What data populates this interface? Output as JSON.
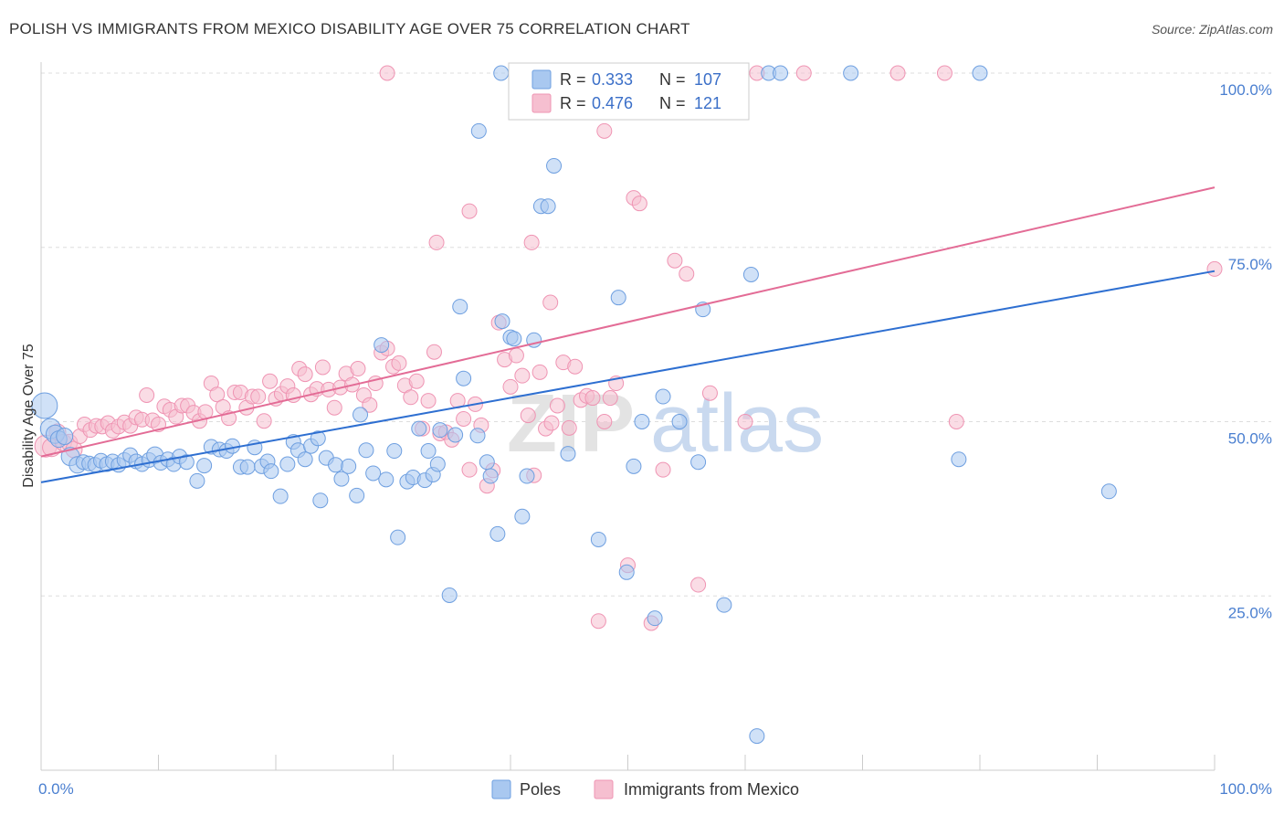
{
  "title": "POLISH VS IMMIGRANTS FROM MEXICO DISABILITY AGE OVER 75 CORRELATION CHART",
  "source": "Source: ZipAtlas.com",
  "watermark": {
    "part1": "ZIP",
    "part2": "atlas"
  },
  "legend": {
    "rows": [
      {
        "r_label": "R =",
        "r_value": "0.333",
        "n_label": "N =",
        "n_value": "107"
      },
      {
        "r_label": "R =",
        "r_value": "0.476",
        "n_label": "N =",
        "n_value": "121"
      }
    ]
  },
  "bottom_legend": {
    "series1": "Poles",
    "series2": "Immigrants from Mexico"
  },
  "colors": {
    "poles_fill": "#a9c8f0",
    "poles_stroke": "#6e9fe0",
    "poles_line": "#2e6fd1",
    "mex_fill": "#f6bfd0",
    "mex_stroke": "#ef94b3",
    "mex_line": "#e36c96",
    "tick_label": "#4a7fd0",
    "grid": "#dddddd"
  },
  "chart_data": {
    "type": "scatter",
    "title": "POLISH VS IMMIGRANTS FROM MEXICO DISABILITY AGE OVER 75 CORRELATION CHART",
    "ylabel": "Disability Age Over 75",
    "xlabel": "",
    "xlim": [
      0,
      100
    ],
    "ylim": [
      0,
      100
    ],
    "x_tick_labels": [
      "0.0%",
      "100.0%"
    ],
    "y_ticks": [
      25,
      50,
      75,
      100
    ],
    "y_tick_labels": [
      "25.0%",
      "50.0%",
      "75.0%",
      "100.0%"
    ],
    "grid": "horizontal dashed",
    "legend_position": "top-center",
    "series": [
      {
        "name": "Poles",
        "R": 0.333,
        "N": 107,
        "trend": {
          "x": [
            0,
            100
          ],
          "y": [
            41.3,
            71.6
          ]
        },
        "points": [
          [
            0.3,
            52.3,
            14
          ],
          [
            0.8,
            49.0,
            11
          ],
          [
            1.2,
            48.2,
            10
          ],
          [
            1.5,
            47.5,
            9
          ],
          [
            2.0,
            47.9,
            9
          ],
          [
            2.5,
            45.0,
            10
          ],
          [
            3.1,
            43.8,
            9
          ],
          [
            3.6,
            44.2,
            8
          ],
          [
            4.1,
            44.0,
            8
          ],
          [
            4.6,
            43.8,
            8
          ],
          [
            5.1,
            44.4,
            8
          ],
          [
            5.6,
            43.9,
            8
          ],
          [
            6.1,
            44.3,
            8
          ],
          [
            6.6,
            43.8,
            8
          ],
          [
            7.1,
            44.5,
            8
          ],
          [
            7.6,
            45.2,
            8
          ],
          [
            8.1,
            44.3,
            8
          ],
          [
            8.6,
            43.9,
            8
          ],
          [
            9.2,
            44.5,
            8
          ],
          [
            9.7,
            45.2,
            9
          ],
          [
            10.2,
            44.1,
            8
          ],
          [
            10.8,
            44.6,
            8
          ],
          [
            11.3,
            43.9,
            8
          ],
          [
            11.8,
            45.0,
            8
          ],
          [
            12.4,
            44.2,
            8
          ],
          [
            13.3,
            41.5,
            8
          ],
          [
            13.9,
            43.7,
            8
          ],
          [
            14.5,
            46.4,
            8
          ],
          [
            15.2,
            46.0,
            8
          ],
          [
            15.8,
            45.8,
            8
          ],
          [
            16.3,
            46.5,
            8
          ],
          [
            17.0,
            43.5,
            8
          ],
          [
            17.6,
            43.5,
            8
          ],
          [
            18.2,
            46.3,
            8
          ],
          [
            18.8,
            43.6,
            8
          ],
          [
            19.3,
            44.3,
            8
          ],
          [
            19.6,
            42.9,
            8
          ],
          [
            20.4,
            39.3,
            8
          ],
          [
            21.0,
            43.9,
            8
          ],
          [
            21.5,
            47.1,
            8
          ],
          [
            21.9,
            45.9,
            8
          ],
          [
            22.5,
            44.6,
            8
          ],
          [
            23.0,
            46.5,
            8
          ],
          [
            23.6,
            47.6,
            8
          ],
          [
            23.8,
            38.7,
            8
          ],
          [
            24.3,
            44.8,
            8
          ],
          [
            25.1,
            43.8,
            8
          ],
          [
            25.6,
            41.8,
            8
          ],
          [
            26.2,
            43.6,
            8
          ],
          [
            26.9,
            39.4,
            8
          ],
          [
            27.2,
            51.0,
            8
          ],
          [
            27.7,
            45.9,
            8
          ],
          [
            28.3,
            42.6,
            8
          ],
          [
            29.0,
            61.0,
            8
          ],
          [
            29.4,
            41.7,
            8
          ],
          [
            30.1,
            45.8,
            8
          ],
          [
            30.4,
            33.4,
            8
          ],
          [
            31.2,
            41.4,
            8
          ],
          [
            31.7,
            42.0,
            8
          ],
          [
            32.2,
            49.0,
            8
          ],
          [
            32.7,
            41.6,
            8
          ],
          [
            33.0,
            45.8,
            8
          ],
          [
            33.4,
            42.4,
            8
          ],
          [
            33.8,
            43.9,
            8
          ],
          [
            34.0,
            48.8,
            8
          ],
          [
            34.8,
            25.1,
            8
          ],
          [
            35.3,
            48.1,
            8
          ],
          [
            35.7,
            66.5,
            8
          ],
          [
            36.0,
            56.2,
            8
          ],
          [
            37.2,
            48.0,
            8
          ],
          [
            38.0,
            44.2,
            8
          ],
          [
            38.3,
            42.2,
            8
          ],
          [
            38.9,
            33.9,
            8
          ],
          [
            39.3,
            64.4,
            8
          ],
          [
            40.0,
            62.1,
            8
          ],
          [
            40.3,
            61.9,
            8
          ],
          [
            41.0,
            36.4,
            8
          ],
          [
            41.4,
            42.2,
            8
          ],
          [
            42.0,
            61.7,
            8
          ],
          [
            42.6,
            80.9,
            8
          ],
          [
            43.7,
            86.7,
            8
          ],
          [
            44.9,
            45.4,
            8
          ],
          [
            47.5,
            33.1,
            8
          ],
          [
            49.2,
            67.8,
            8
          ],
          [
            49.9,
            28.4,
            8
          ],
          [
            50.5,
            43.6,
            8
          ],
          [
            51.2,
            50.0,
            8
          ],
          [
            52.3,
            21.8,
            8
          ],
          [
            53.0,
            53.6,
            8
          ],
          [
            54.4,
            50.0,
            8
          ],
          [
            56.0,
            44.2,
            8
          ],
          [
            56.4,
            66.1,
            8
          ],
          [
            58.2,
            23.7,
            8
          ],
          [
            60.5,
            71.1,
            8
          ],
          [
            61.0,
            4.9,
            8
          ],
          [
            62.0,
            100.0,
            8
          ],
          [
            63.0,
            100.0,
            8
          ],
          [
            69.0,
            100.0,
            8
          ],
          [
            80.0,
            100.0,
            8
          ],
          [
            78.2,
            44.6,
            8
          ],
          [
            91.0,
            40.0,
            8
          ],
          [
            39.2,
            100.0,
            8
          ],
          [
            40.6,
            100.0,
            8
          ],
          [
            42.2,
            100.0,
            8
          ],
          [
            44.0,
            100.0,
            8
          ],
          [
            46.5,
            100.0,
            8
          ],
          [
            48.1,
            100.0,
            8
          ],
          [
            50.1,
            100.0,
            8
          ],
          [
            52.2,
            100.0,
            8
          ],
          [
            54.0,
            100.0,
            8
          ],
          [
            37.3,
            91.7,
            8
          ],
          [
            43.2,
            80.9,
            8
          ]
        ]
      },
      {
        "name": "Immigrants from Mexico",
        "R": 0.476,
        "N": 121,
        "trend": {
          "x": [
            0,
            100
          ],
          "y": [
            45.0,
            83.6
          ]
        },
        "points": [
          [
            0.4,
            46.5,
            12
          ],
          [
            0.9,
            46.3,
            10
          ],
          [
            1.4,
            48.5,
            9
          ],
          [
            1.9,
            47.0,
            9
          ],
          [
            2.4,
            47.0,
            9
          ],
          [
            2.8,
            46.0,
            9
          ],
          [
            3.3,
            47.9,
            8
          ],
          [
            3.7,
            49.6,
            8
          ],
          [
            4.2,
            48.8,
            8
          ],
          [
            4.7,
            49.4,
            8
          ],
          [
            5.2,
            49.3,
            8
          ],
          [
            5.7,
            49.8,
            8
          ],
          [
            6.1,
            48.7,
            8
          ],
          [
            6.6,
            49.3,
            8
          ],
          [
            7.1,
            49.9,
            8
          ],
          [
            7.6,
            49.4,
            8
          ],
          [
            8.1,
            50.6,
            8
          ],
          [
            8.6,
            50.3,
            8
          ],
          [
            9.0,
            53.8,
            8
          ],
          [
            9.5,
            50.2,
            8
          ],
          [
            10.0,
            49.6,
            8
          ],
          [
            10.5,
            52.2,
            8
          ],
          [
            11.0,
            51.7,
            8
          ],
          [
            11.5,
            50.7,
            8
          ],
          [
            12.0,
            52.3,
            8
          ],
          [
            12.5,
            52.3,
            8
          ],
          [
            13.0,
            51.3,
            8
          ],
          [
            13.5,
            50.1,
            8
          ],
          [
            14.0,
            51.4,
            8
          ],
          [
            14.5,
            55.5,
            8
          ],
          [
            15.0,
            53.9,
            8
          ],
          [
            15.5,
            52.1,
            8
          ],
          [
            16.0,
            50.5,
            8
          ],
          [
            16.5,
            54.2,
            8
          ],
          [
            17.0,
            54.2,
            8
          ],
          [
            17.5,
            52.0,
            8
          ],
          [
            18.0,
            53.6,
            8
          ],
          [
            18.5,
            53.6,
            8
          ],
          [
            19.0,
            50.1,
            8
          ],
          [
            19.5,
            55.8,
            8
          ],
          [
            20.0,
            53.3,
            8
          ],
          [
            20.5,
            54.0,
            8
          ],
          [
            21.0,
            55.1,
            8
          ],
          [
            21.5,
            53.8,
            8
          ],
          [
            22.0,
            57.6,
            8
          ],
          [
            22.5,
            56.8,
            8
          ],
          [
            23.0,
            53.9,
            8
          ],
          [
            23.5,
            54.7,
            8
          ],
          [
            24.0,
            57.8,
            8
          ],
          [
            24.5,
            54.6,
            8
          ],
          [
            25.0,
            52.0,
            8
          ],
          [
            25.5,
            54.9,
            8
          ],
          [
            26.0,
            56.9,
            8
          ],
          [
            26.5,
            55.3,
            8
          ],
          [
            27.0,
            57.6,
            8
          ],
          [
            27.5,
            53.8,
            8
          ],
          [
            28.0,
            52.4,
            8
          ],
          [
            28.5,
            55.5,
            8
          ],
          [
            29.0,
            59.9,
            8
          ],
          [
            29.5,
            60.5,
            8
          ],
          [
            30.0,
            57.9,
            8
          ],
          [
            30.5,
            58.4,
            8
          ],
          [
            31.0,
            55.2,
            8
          ],
          [
            31.5,
            53.5,
            8
          ],
          [
            32.0,
            55.8,
            8
          ],
          [
            32.5,
            49.0,
            8
          ],
          [
            33.0,
            53.0,
            8
          ],
          [
            33.5,
            60.0,
            8
          ],
          [
            34.0,
            48.3,
            8
          ],
          [
            34.5,
            48.5,
            8
          ],
          [
            35.0,
            47.4,
            8
          ],
          [
            35.5,
            53.0,
            8
          ],
          [
            36.0,
            50.4,
            8
          ],
          [
            36.5,
            43.1,
            8
          ],
          [
            37.0,
            52.5,
            8
          ],
          [
            37.5,
            49.5,
            8
          ],
          [
            38.0,
            40.8,
            8
          ],
          [
            38.5,
            43.0,
            8
          ],
          [
            39.0,
            64.2,
            8
          ],
          [
            39.5,
            58.9,
            8
          ],
          [
            40.0,
            55.0,
            8
          ],
          [
            40.5,
            59.5,
            8
          ],
          [
            41.0,
            56.6,
            8
          ],
          [
            41.5,
            50.9,
            8
          ],
          [
            42.0,
            42.3,
            8
          ],
          [
            42.5,
            57.1,
            8
          ],
          [
            43.0,
            49.0,
            8
          ],
          [
            43.5,
            49.8,
            8
          ],
          [
            44.0,
            52.3,
            8
          ],
          [
            44.5,
            58.5,
            8
          ],
          [
            45.0,
            49.1,
            8
          ],
          [
            45.5,
            57.9,
            8
          ],
          [
            46.0,
            53.1,
            8
          ],
          [
            46.5,
            53.7,
            8
          ],
          [
            47.0,
            53.4,
            8
          ],
          [
            47.5,
            21.4,
            8
          ],
          [
            48.0,
            50.0,
            8
          ],
          [
            48.5,
            53.4,
            8
          ],
          [
            49.0,
            55.5,
            8
          ],
          [
            50.0,
            29.4,
            8
          ],
          [
            50.5,
            82.1,
            8
          ],
          [
            51.0,
            81.3,
            8
          ],
          [
            52.0,
            21.1,
            8
          ],
          [
            53.0,
            43.1,
            8
          ],
          [
            54.0,
            73.1,
            8
          ],
          [
            55.0,
            71.2,
            8
          ],
          [
            56.0,
            26.6,
            8
          ],
          [
            57.0,
            54.1,
            8
          ],
          [
            60.0,
            50.0,
            8
          ],
          [
            61.0,
            100.0,
            8
          ],
          [
            65.0,
            100.0,
            8
          ],
          [
            73.0,
            100.0,
            8
          ],
          [
            77.0,
            100.0,
            8
          ],
          [
            78.0,
            50.0,
            8
          ],
          [
            100.0,
            71.9,
            8
          ],
          [
            36.5,
            80.2,
            8
          ],
          [
            41.8,
            75.7,
            8
          ],
          [
            43.4,
            67.1,
            8
          ],
          [
            48.0,
            91.7,
            8
          ],
          [
            33.7,
            75.7,
            8
          ],
          [
            29.5,
            100.0,
            8
          ]
        ]
      }
    ]
  }
}
